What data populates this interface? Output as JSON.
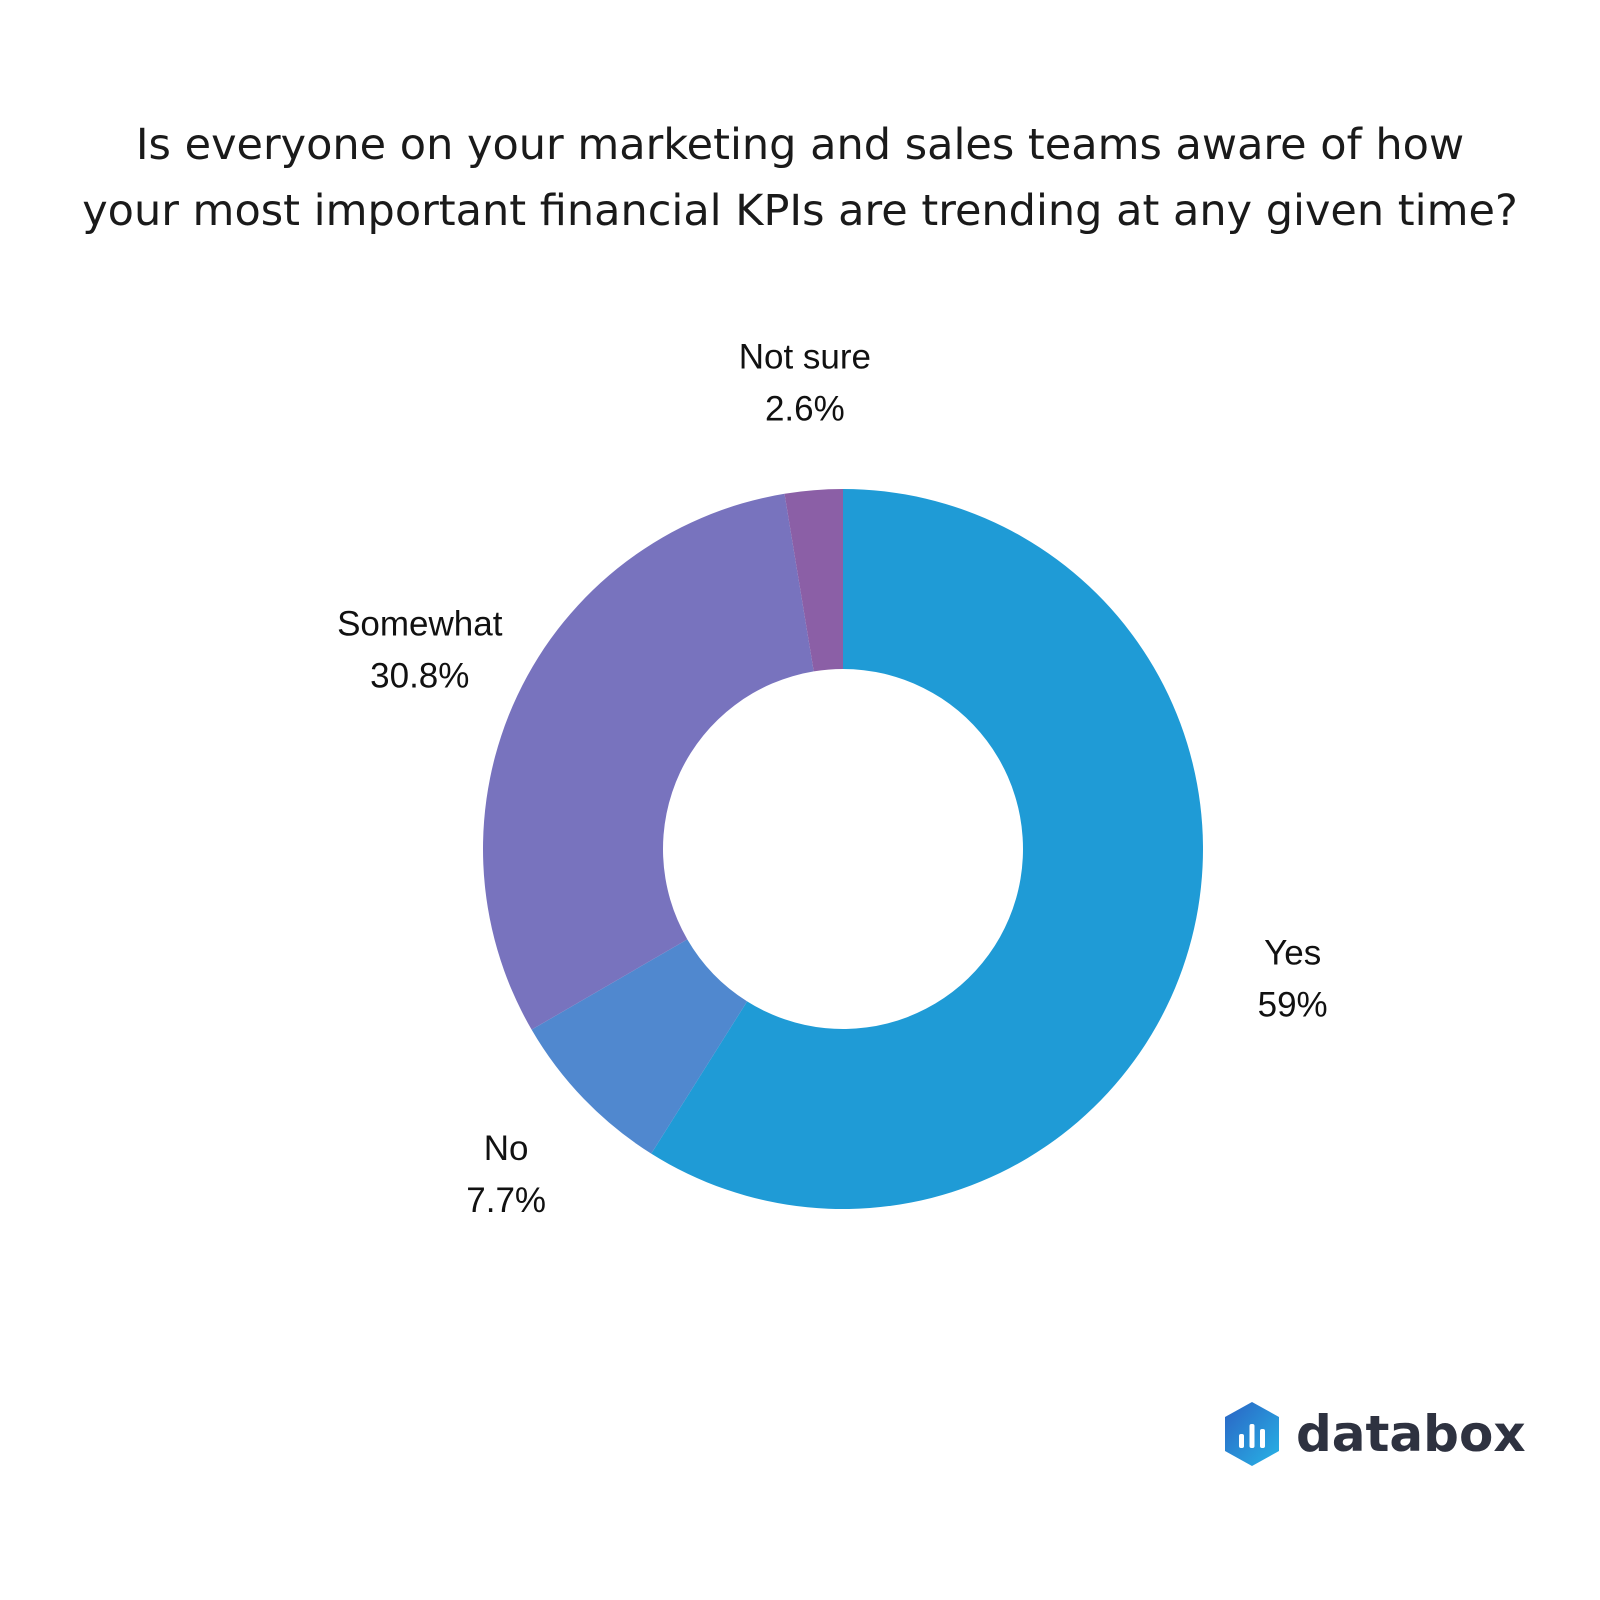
{
  "chart_data": {
    "type": "pie",
    "donut": true,
    "title_lines": [
      "Is everyone on your marketing and sales teams aware of how",
      "your most important financial KPIs are trending at any given time?"
    ],
    "slices": [
      {
        "label": "Yes",
        "value": 59,
        "display": "59%",
        "color": "#1f9bd6"
      },
      {
        "label": "No",
        "value": 7.7,
        "display": "7.7%",
        "color": "#5088cf"
      },
      {
        "label": "Somewhat",
        "value": 30.8,
        "display": "30.8%",
        "color": "#7873be"
      },
      {
        "label": "Not sure",
        "value": 2.6,
        "display": "2.6%",
        "color": "#8b5fa6"
      }
    ],
    "start_angle": "12 o'clock",
    "direction": "clockwise",
    "legend": "none"
  },
  "branding": {
    "logo_text": "databox",
    "logo_icon": "databox-bar-chart-hexagon-icon",
    "logo_colors": [
      "#2a63c4",
      "#28b4e6"
    ]
  }
}
